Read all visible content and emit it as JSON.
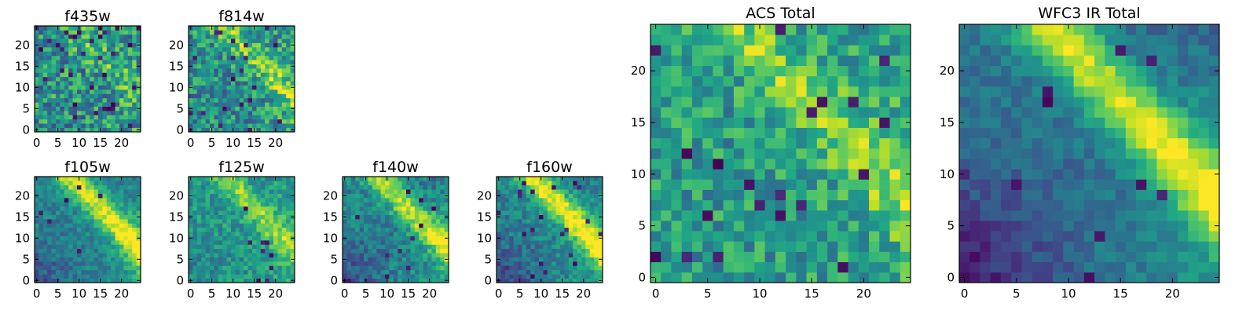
{
  "colormap": "viridis",
  "chart_data": [
    {
      "type": "heatmap",
      "title": "f435w",
      "grid_size": 25,
      "xlim": [
        -0.5,
        24.5
      ],
      "ylim": [
        -0.5,
        24.5
      ],
      "xticks": [
        0,
        5,
        10,
        15,
        20
      ],
      "yticks": [
        0,
        5,
        10,
        15,
        20
      ],
      "intensity": "mostly mid-range teal/green noise with scattered dark-purple pixels; slightly brighter yellow-green toward the top and center",
      "value_range": [
        0,
        1
      ]
    },
    {
      "type": "heatmap",
      "title": "f814w",
      "grid_size": 25,
      "xlim": [
        -0.5,
        24.5
      ],
      "ylim": [
        -0.5,
        24.5
      ],
      "xticks": [
        0,
        5,
        10,
        15,
        20
      ],
      "yticks": [
        0,
        5,
        10,
        15,
        20
      ],
      "intensity": "green/teal noise with a brighter yellow-green diagonal band from upper-center toward the right; darker pixels on the left",
      "value_range": [
        0,
        1
      ]
    },
    {
      "type": "heatmap",
      "title": "f105w",
      "grid_size": 25,
      "xlim": [
        -0.5,
        24.5
      ],
      "ylim": [
        -0.5,
        24.5
      ],
      "xticks": [
        0,
        5,
        10,
        15,
        20
      ],
      "yticks": [
        0,
        5,
        10,
        15,
        20
      ],
      "intensity": "dark lower-left, bright yellow band along upper-center to right",
      "value_range": [
        0,
        1
      ]
    },
    {
      "type": "heatmap",
      "title": "f125w",
      "grid_size": 25,
      "xlim": [
        -0.5,
        24.5
      ],
      "ylim": [
        -0.5,
        24.5
      ],
      "xticks": [
        0,
        5,
        10,
        15,
        20
      ],
      "yticks": [
        0,
        5,
        10,
        15,
        20
      ],
      "intensity": "teal/green field brightening toward the right edge, a few dark pixels in the center",
      "value_range": [
        0,
        1
      ]
    },
    {
      "type": "heatmap",
      "title": "f140w",
      "grid_size": 25,
      "xlim": [
        -0.5,
        24.5
      ],
      "ylim": [
        -0.5,
        24.5
      ],
      "xticks": [
        0,
        5,
        10,
        15,
        20
      ],
      "yticks": [
        0,
        5,
        10,
        15,
        20
      ],
      "intensity": "dark blue lower-left, yellow-green diagonal band toward upper-right",
      "value_range": [
        0,
        1
      ]
    },
    {
      "type": "heatmap",
      "title": "f160w",
      "grid_size": 25,
      "xlim": [
        -0.5,
        24.5
      ],
      "ylim": [
        -0.5,
        24.5
      ],
      "xticks": [
        0,
        5,
        10,
        15,
        20
      ],
      "yticks": [
        0,
        5,
        10,
        15,
        20
      ],
      "intensity": "dark purple lower-left, bright yellow band on upper-right",
      "value_range": [
        0,
        1
      ]
    },
    {
      "type": "heatmap",
      "title": "ACS Total",
      "grid_size": 25,
      "xlim": [
        -0.5,
        24.5
      ],
      "ylim": [
        -0.5,
        24.5
      ],
      "xticks": [
        0,
        5,
        10,
        15,
        20
      ],
      "yticks": [
        0,
        5,
        10,
        15,
        20
      ],
      "intensity": "mostly green/teal with scattered dark purple pixels; brighter yellow diagonal band from top-center to the right edge",
      "value_range": [
        0,
        1
      ]
    },
    {
      "type": "heatmap",
      "title": "WFC3 IR Total",
      "grid_size": 25,
      "xlim": [
        -0.5,
        24.5
      ],
      "ylim": [
        -0.5,
        24.5
      ],
      "xticks": [
        0,
        5,
        10,
        15,
        20
      ],
      "yticks": [
        0,
        5,
        10,
        15,
        20
      ],
      "intensity": "dark blue/purple lower-left region, bright yellow diagonal band running from upper-center down to the right",
      "value_range": [
        0,
        1
      ]
    }
  ]
}
